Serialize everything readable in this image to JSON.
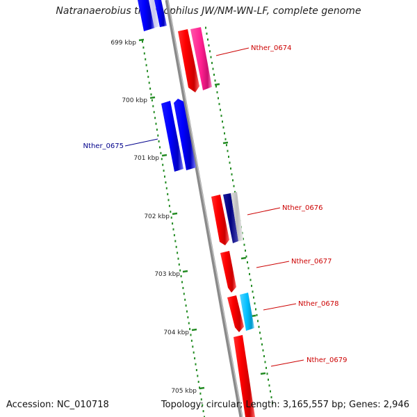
{
  "header": {
    "title": "Natranaerobius thermophilus JW/NM-WN-LF, complete genome"
  },
  "footer": {
    "accession": "Accession: NC_010718",
    "summary": "Topology: circular; Length: 3,165,557 bp; Genes: 2,946"
  },
  "ticks": [
    {
      "label": "699 kbp"
    },
    {
      "label": "700 kbp"
    },
    {
      "label": "701 kbp"
    },
    {
      "label": "702 kbp"
    },
    {
      "label": "703 kbp"
    },
    {
      "label": "704 kbp"
    },
    {
      "label": "705 kbp"
    }
  ],
  "gene_labels": [
    {
      "name": "Nther_0674",
      "color": "#cc0000"
    },
    {
      "name": "Nther_0675",
      "color": "#00008b"
    },
    {
      "name": "Nther_0676",
      "color": "#cc0000"
    },
    {
      "name": "Nther_0677",
      "color": "#cc0000"
    },
    {
      "name": "Nther_0678",
      "color": "#cc0000"
    },
    {
      "name": "Nther_0679",
      "color": "#cc0000"
    }
  ],
  "colors": {
    "backbone": "#888888",
    "tick_marks": "#228b22",
    "forward_gene": "#ff0000",
    "reverse_gene": "#0000ff",
    "pink_feature": "#ff3399",
    "navy_feature": "#000080",
    "cyan_feature": "#00bfff",
    "grey_feature": "#bbbbbb",
    "faded_blue": "#c8c8ee"
  }
}
